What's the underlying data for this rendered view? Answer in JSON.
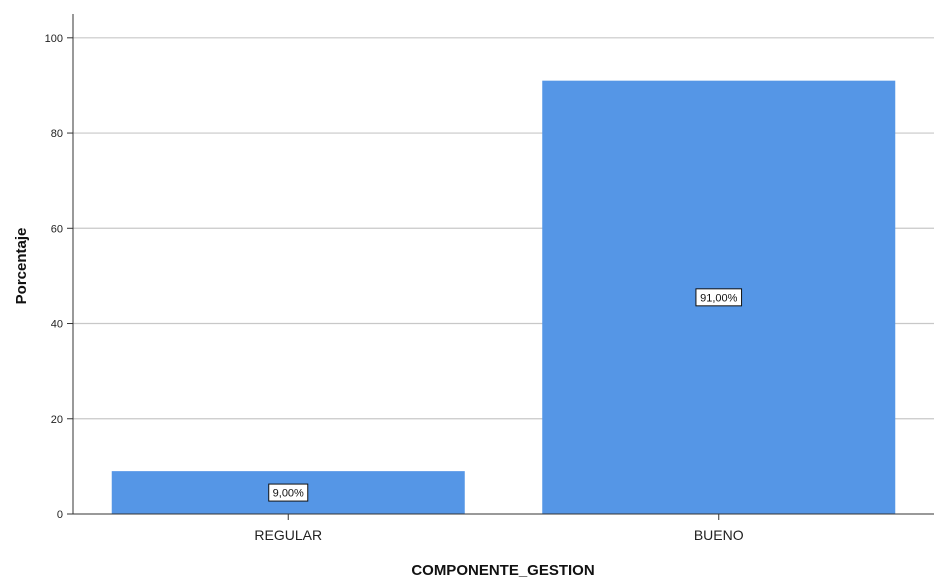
{
  "chart_data": {
    "type": "bar",
    "categories": [
      "REGULAR",
      "BUENO"
    ],
    "values": [
      9,
      91
    ],
    "data_labels": [
      "9,00%",
      "91,00%"
    ],
    "title": "",
    "xlabel": "COMPONENTE_GESTION",
    "ylabel": "Porcentaje",
    "ylim": [
      0,
      105
    ],
    "yticks": [
      "0",
      "20",
      "40",
      "60",
      "80",
      "100"
    ],
    "grid": true,
    "legend": "none",
    "bar_color": "#5596E6",
    "grid_color": "#c8c8c8"
  }
}
